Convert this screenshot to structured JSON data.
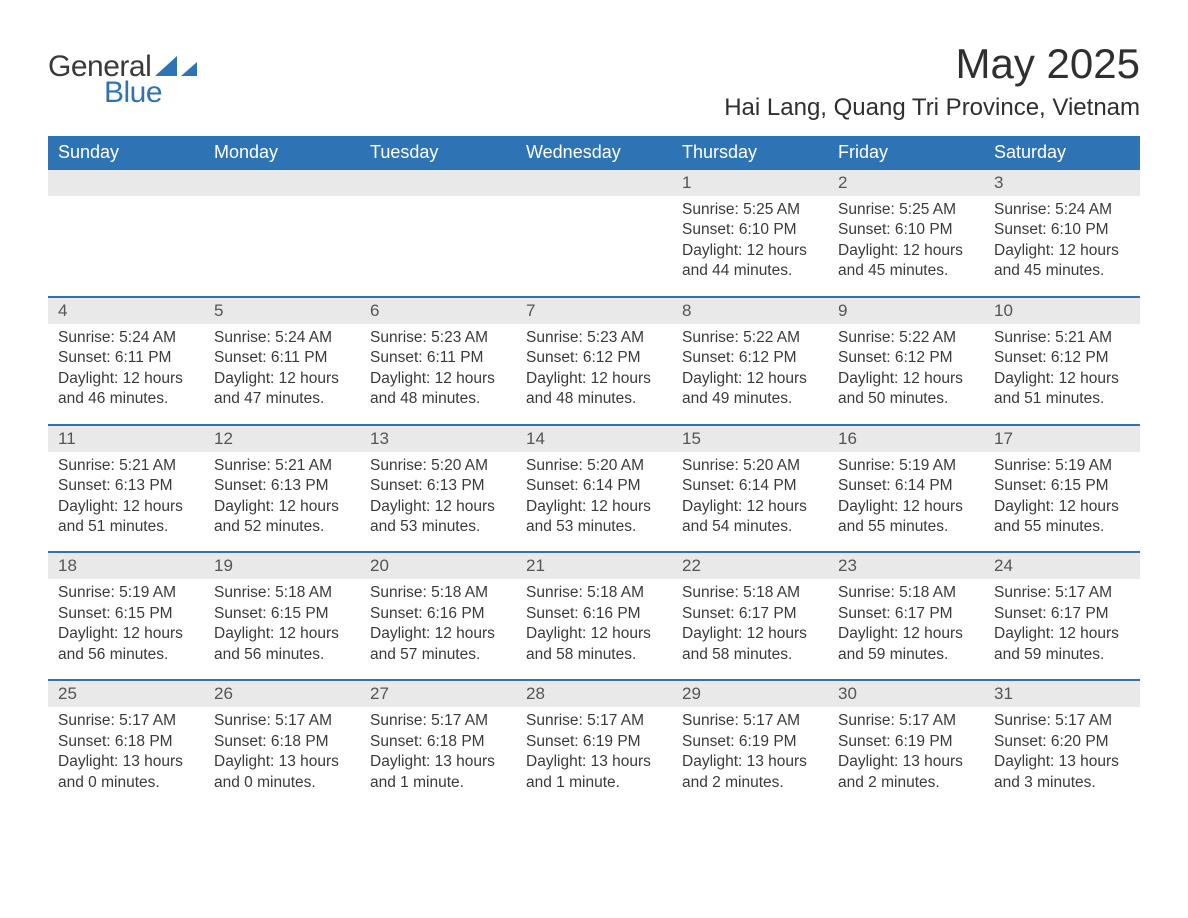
{
  "logo": {
    "word1": "General",
    "word2": "Blue",
    "shape_color": "#2e74b5"
  },
  "title": {
    "month": "May 2025",
    "location": "Hai Lang, Quang Tri Province, Vietnam"
  },
  "colors": {
    "header_bg": "#2e74b5",
    "header_text": "#ffffff",
    "strip_bg": "#e9e9e9",
    "week_border": "#2e74b5",
    "body_text": "#3a3a3a"
  },
  "day_headers": [
    "Sunday",
    "Monday",
    "Tuesday",
    "Wednesday",
    "Thursday",
    "Friday",
    "Saturday"
  ],
  "weeks": [
    [
      {},
      {},
      {},
      {},
      {
        "num": "1",
        "sunrise": "Sunrise: 5:25 AM",
        "sunset": "Sunset: 6:10 PM",
        "daylight": "Daylight: 12 hours and 44 minutes."
      },
      {
        "num": "2",
        "sunrise": "Sunrise: 5:25 AM",
        "sunset": "Sunset: 6:10 PM",
        "daylight": "Daylight: 12 hours and 45 minutes."
      },
      {
        "num": "3",
        "sunrise": "Sunrise: 5:24 AM",
        "sunset": "Sunset: 6:10 PM",
        "daylight": "Daylight: 12 hours and 45 minutes."
      }
    ],
    [
      {
        "num": "4",
        "sunrise": "Sunrise: 5:24 AM",
        "sunset": "Sunset: 6:11 PM",
        "daylight": "Daylight: 12 hours and 46 minutes."
      },
      {
        "num": "5",
        "sunrise": "Sunrise: 5:24 AM",
        "sunset": "Sunset: 6:11 PM",
        "daylight": "Daylight: 12 hours and 47 minutes."
      },
      {
        "num": "6",
        "sunrise": "Sunrise: 5:23 AM",
        "sunset": "Sunset: 6:11 PM",
        "daylight": "Daylight: 12 hours and 48 minutes."
      },
      {
        "num": "7",
        "sunrise": "Sunrise: 5:23 AM",
        "sunset": "Sunset: 6:12 PM",
        "daylight": "Daylight: 12 hours and 48 minutes."
      },
      {
        "num": "8",
        "sunrise": "Sunrise: 5:22 AM",
        "sunset": "Sunset: 6:12 PM",
        "daylight": "Daylight: 12 hours and 49 minutes."
      },
      {
        "num": "9",
        "sunrise": "Sunrise: 5:22 AM",
        "sunset": "Sunset: 6:12 PM",
        "daylight": "Daylight: 12 hours and 50 minutes."
      },
      {
        "num": "10",
        "sunrise": "Sunrise: 5:21 AM",
        "sunset": "Sunset: 6:12 PM",
        "daylight": "Daylight: 12 hours and 51 minutes."
      }
    ],
    [
      {
        "num": "11",
        "sunrise": "Sunrise: 5:21 AM",
        "sunset": "Sunset: 6:13 PM",
        "daylight": "Daylight: 12 hours and 51 minutes."
      },
      {
        "num": "12",
        "sunrise": "Sunrise: 5:21 AM",
        "sunset": "Sunset: 6:13 PM",
        "daylight": "Daylight: 12 hours and 52 minutes."
      },
      {
        "num": "13",
        "sunrise": "Sunrise: 5:20 AM",
        "sunset": "Sunset: 6:13 PM",
        "daylight": "Daylight: 12 hours and 53 minutes."
      },
      {
        "num": "14",
        "sunrise": "Sunrise: 5:20 AM",
        "sunset": "Sunset: 6:14 PM",
        "daylight": "Daylight: 12 hours and 53 minutes."
      },
      {
        "num": "15",
        "sunrise": "Sunrise: 5:20 AM",
        "sunset": "Sunset: 6:14 PM",
        "daylight": "Daylight: 12 hours and 54 minutes."
      },
      {
        "num": "16",
        "sunrise": "Sunrise: 5:19 AM",
        "sunset": "Sunset: 6:14 PM",
        "daylight": "Daylight: 12 hours and 55 minutes."
      },
      {
        "num": "17",
        "sunrise": "Sunrise: 5:19 AM",
        "sunset": "Sunset: 6:15 PM",
        "daylight": "Daylight: 12 hours and 55 minutes."
      }
    ],
    [
      {
        "num": "18",
        "sunrise": "Sunrise: 5:19 AM",
        "sunset": "Sunset: 6:15 PM",
        "daylight": "Daylight: 12 hours and 56 minutes."
      },
      {
        "num": "19",
        "sunrise": "Sunrise: 5:18 AM",
        "sunset": "Sunset: 6:15 PM",
        "daylight": "Daylight: 12 hours and 56 minutes."
      },
      {
        "num": "20",
        "sunrise": "Sunrise: 5:18 AM",
        "sunset": "Sunset: 6:16 PM",
        "daylight": "Daylight: 12 hours and 57 minutes."
      },
      {
        "num": "21",
        "sunrise": "Sunrise: 5:18 AM",
        "sunset": "Sunset: 6:16 PM",
        "daylight": "Daylight: 12 hours and 58 minutes."
      },
      {
        "num": "22",
        "sunrise": "Sunrise: 5:18 AM",
        "sunset": "Sunset: 6:17 PM",
        "daylight": "Daylight: 12 hours and 58 minutes."
      },
      {
        "num": "23",
        "sunrise": "Sunrise: 5:18 AM",
        "sunset": "Sunset: 6:17 PM",
        "daylight": "Daylight: 12 hours and 59 minutes."
      },
      {
        "num": "24",
        "sunrise": "Sunrise: 5:17 AM",
        "sunset": "Sunset: 6:17 PM",
        "daylight": "Daylight: 12 hours and 59 minutes."
      }
    ],
    [
      {
        "num": "25",
        "sunrise": "Sunrise: 5:17 AM",
        "sunset": "Sunset: 6:18 PM",
        "daylight": "Daylight: 13 hours and 0 minutes."
      },
      {
        "num": "26",
        "sunrise": "Sunrise: 5:17 AM",
        "sunset": "Sunset: 6:18 PM",
        "daylight": "Daylight: 13 hours and 0 minutes."
      },
      {
        "num": "27",
        "sunrise": "Sunrise: 5:17 AM",
        "sunset": "Sunset: 6:18 PM",
        "daylight": "Daylight: 13 hours and 1 minute."
      },
      {
        "num": "28",
        "sunrise": "Sunrise: 5:17 AM",
        "sunset": "Sunset: 6:19 PM",
        "daylight": "Daylight: 13 hours and 1 minute."
      },
      {
        "num": "29",
        "sunrise": "Sunrise: 5:17 AM",
        "sunset": "Sunset: 6:19 PM",
        "daylight": "Daylight: 13 hours and 2 minutes."
      },
      {
        "num": "30",
        "sunrise": "Sunrise: 5:17 AM",
        "sunset": "Sunset: 6:19 PM",
        "daylight": "Daylight: 13 hours and 2 minutes."
      },
      {
        "num": "31",
        "sunrise": "Sunrise: 5:17 AM",
        "sunset": "Sunset: 6:20 PM",
        "daylight": "Daylight: 13 hours and 3 minutes."
      }
    ]
  ]
}
